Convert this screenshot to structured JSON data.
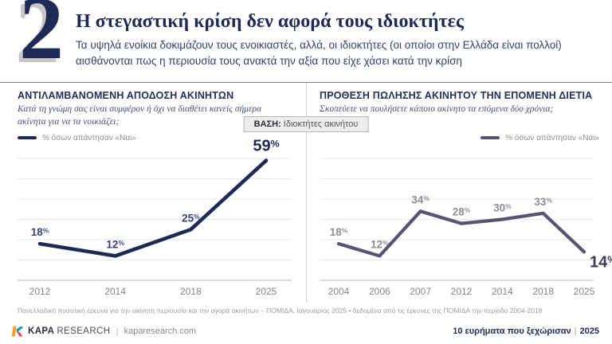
{
  "header": {
    "number": "2",
    "title": "Η στεγαστική κρίση δεν αφορά τους ιδιοκτήτες",
    "subtitle": "Τα υψηλά ενοίκια δοκιμάζουν τους ενοικιαστές, αλλά, οι ιδιοκτήτες (οι οποίοι στην Ελλάδα είναι πολλοί) αισθάνονται πως η περιουσία τους ανακτά την αξία που είχε χάσει κατά την κρίση"
  },
  "base_badge": {
    "label": "ΒΑΣΗ:",
    "value": "Ιδιοκτήτες ακινήτου"
  },
  "chart_data": [
    {
      "type": "line",
      "title": "ΑΝΤΙΛΑΜΒΑΝΟΜΕΝΗ ΑΠΟΔΟΣΗ ΑΚΙΝΗΤΩΝ",
      "subtitle": "Κατά τη γνώμη σας είναι συμφέρον ή όχι να διαθέτει κανείς σήμερα ακίνητα για να τα νοικιάζει;",
      "legend": "% όσων απάντησαν «Ναι»",
      "legend_position": "left",
      "categories": [
        "2012",
        "2014",
        "2018",
        "2025"
      ],
      "values": [
        18,
        12,
        25,
        59
      ],
      "unit": "%",
      "ylim": [
        0,
        65
      ],
      "grid": true,
      "line_color": "#1e2a56",
      "label_color": "#35447a",
      "emphasis_color": "#1e2a56",
      "emphasis_position": "above"
    },
    {
      "type": "line",
      "title": "ΠΡΟΘΕΣΗ ΠΩΛΗΣΗΣ ΑΚΙΝΗΤΟΥ ΤΗΝ ΕΠΟΜΕΝΗ ΔΙΕΤΙΑ",
      "subtitle": "Σκοπεύετε να πουλήσετε κάποιο ακίνητο τα επόμενα δύο χρόνια;",
      "legend": "% όσων απάντησαν «Ναι»",
      "legend_position": "right",
      "categories": [
        "2004",
        "2006",
        "2007",
        "2012",
        "2014",
        "2018",
        "2025"
      ],
      "values": [
        18,
        12,
        34,
        28,
        30,
        33,
        14
      ],
      "unit": "%",
      "ylim": [
        0,
        65
      ],
      "grid": true,
      "line_color": "#5a5271",
      "label_color": "#8d8d95",
      "emphasis_color": "#3c3c55",
      "emphasis_position": "below-right"
    }
  ],
  "footer": {
    "footnote": "Πανελλαδική ποσοτική έρευνα για την ακίνητη περιουσία και την αγορά ακινήτων – ΠΟΜΙΔΑ, Ιανουάριος 2025 • δεδομένα από τις έρευνες της ΠΟΜΙΔΑ την περίοδο 2004-2018",
    "brand_kapa": "KAPA",
    "brand_research": "RESEARCH",
    "separator": "|",
    "site": "kaparesearch.com",
    "right_text": "10 ευρήματα που ξεχώρισαν",
    "right_year": "2025"
  },
  "colors": {
    "navy": "#1e2a56",
    "purple_line": "#5a5271",
    "grid": "#e9e9ec",
    "axis": "#cfcfd4",
    "year_label": "#84848c",
    "badge_bg": "#ececec"
  }
}
